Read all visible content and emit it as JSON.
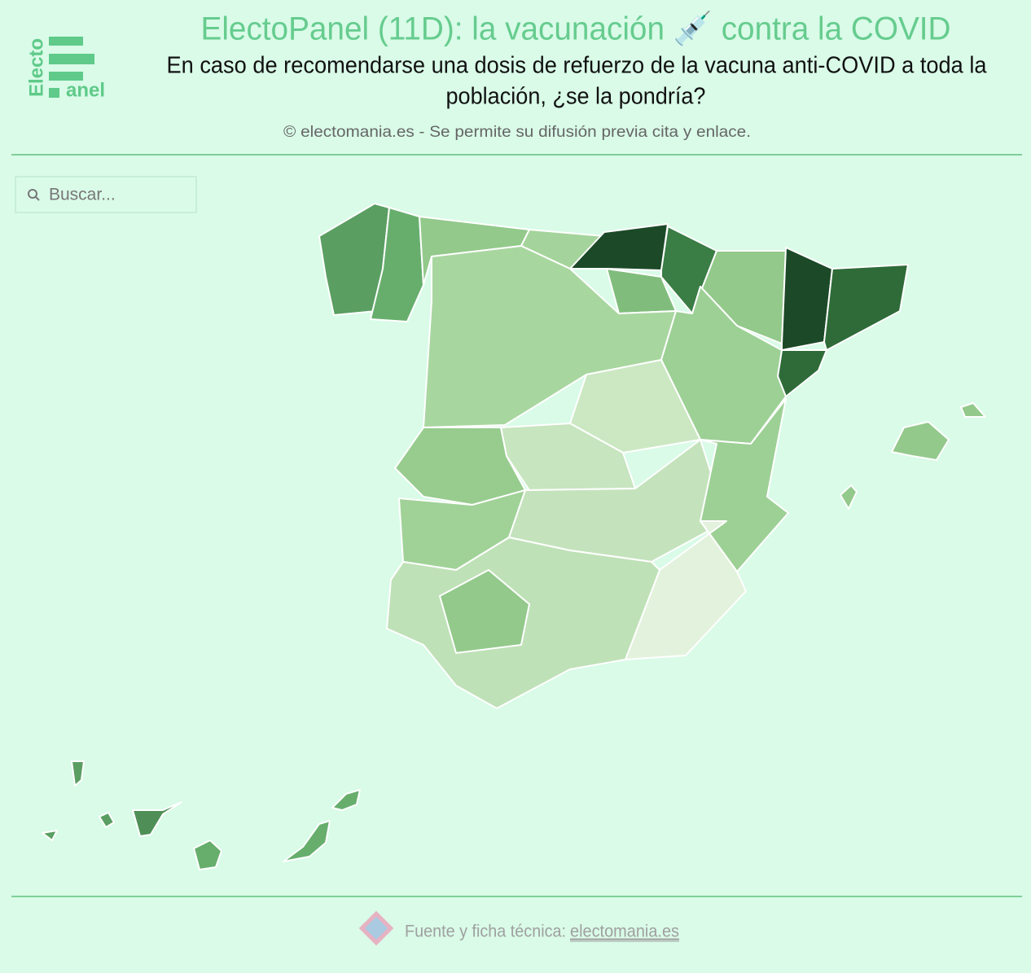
{
  "logo": {
    "top": "Electo",
    "bottom": "anel"
  },
  "header": {
    "title": "ElectoPanel (11D): la vacunación 💉 contra la COVID",
    "subtitle": [
      "En caso de recomendarse una dosis de refuerzo de la vacuna anti-COVID a toda la",
      "población, ¿se la pondría?"
    ],
    "copyright": "© electomania.es - Se permite su difusión previa cita y enlace."
  },
  "search": {
    "placeholder": "Buscar..."
  },
  "footer": {
    "label": "Fuente y ficha técnica:",
    "link": "electomania.es"
  }
}
